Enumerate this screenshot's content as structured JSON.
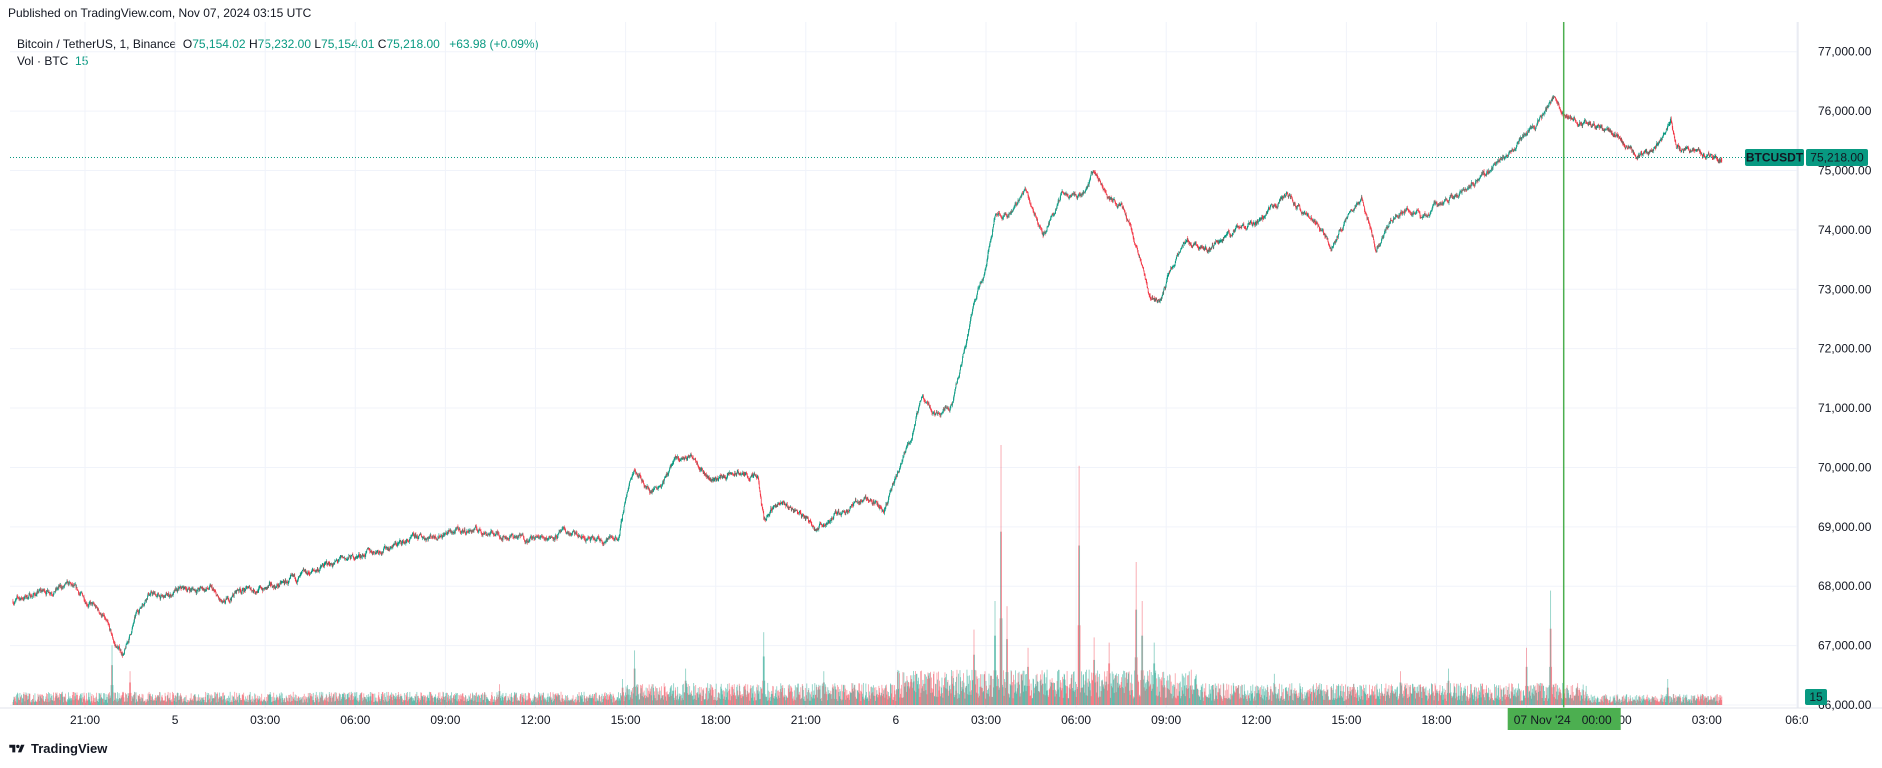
{
  "header": {
    "published": "Published on TradingView.com, Nov 07, 2024 03:15 UTC"
  },
  "legend": {
    "symbol": "Bitcoin / TetherUS, 1, Binance",
    "o_label": "O",
    "o_value": "75,154.02",
    "h_label": "H",
    "h_value": "75,232.00",
    "l_label": "L",
    "l_value": "75,154.01",
    "c_label": "C",
    "c_value": "75,218.00",
    "change": "+63.98 (+0.09%)",
    "vol_label": "Vol · BTC",
    "vol_value": "15"
  },
  "badges": {
    "symbol_badge": "BTCUSDT",
    "price_badge": "75,218.00",
    "volume_badge": "15",
    "crosshair_date": "07 Nov '24",
    "crosshair_time": "00:00"
  },
  "footer": {
    "brand": "TradingView"
  },
  "colors": {
    "up": "#089981",
    "down": "#f23645",
    "crosshair": "#4caf50",
    "grid": "#f0f3fa",
    "price_line": "#089981"
  },
  "chart_data": {
    "type": "candlestick",
    "symbol": "BTCUSDT",
    "timeframe": "1",
    "exchange": "Binance",
    "y_axis": {
      "ticks": [
        "77,000.00",
        "76,000.00",
        "75,000.00",
        "74,000.00",
        "73,000.00",
        "72,000.00",
        "71,000.00",
        "70,000.00",
        "69,000.00",
        "68,000.00",
        "67,000.00",
        "66,000.00"
      ],
      "ylim": [
        65950,
        77500
      ]
    },
    "x_axis": {
      "ticks": [
        {
          "label": "21:00",
          "h": 0
        },
        {
          "label": "5",
          "h": 3
        },
        {
          "label": "03:00",
          "h": 6
        },
        {
          "label": "06:00",
          "h": 9
        },
        {
          "label": "09:00",
          "h": 12
        },
        {
          "label": "12:00",
          "h": 15
        },
        {
          "label": "15:00",
          "h": 18
        },
        {
          "label": "18:00",
          "h": 21
        },
        {
          "label": "21:00",
          "h": 24
        },
        {
          "label": "6",
          "h": 27
        },
        {
          "label": "03:00",
          "h": 30
        },
        {
          "label": "06:00",
          "h": 33
        },
        {
          "label": "09:00",
          "h": 36
        },
        {
          "label": "12:00",
          "h": 39
        },
        {
          "label": "15:00",
          "h": 42
        },
        {
          "label": "18:00",
          "h": 45
        },
        {
          "label": "21:00",
          "h": 48
        },
        {
          "label": "00:00",
          "h": 51
        },
        {
          "label": "03:00",
          "h": 54
        },
        {
          "label": "06:0",
          "h": 57
        }
      ],
      "start_h": -2.4,
      "end_h": 59.2
    },
    "last_price": 75218,
    "crosshair_h": 51,
    "price_path": [
      [
        -2.4,
        67750
      ],
      [
        -1.5,
        67900
      ],
      [
        -0.5,
        68000
      ],
      [
        0.2,
        67700
      ],
      [
        0.6,
        67500
      ],
      [
        1.0,
        67000
      ],
      [
        1.3,
        66850
      ],
      [
        1.7,
        67500
      ],
      [
        2.1,
        67900
      ],
      [
        2.6,
        67800
      ],
      [
        3.3,
        67950
      ],
      [
        4.2,
        67950
      ],
      [
        4.6,
        67650
      ],
      [
        5.1,
        67950
      ],
      [
        6.0,
        67950
      ],
      [
        7.0,
        68100
      ],
      [
        8.0,
        68350
      ],
      [
        9.0,
        68500
      ],
      [
        10.0,
        68650
      ],
      [
        11.0,
        68800
      ],
      [
        12.0,
        68900
      ],
      [
        13.0,
        68950
      ],
      [
        14.0,
        68850
      ],
      [
        15.0,
        68800
      ],
      [
        16.0,
        68900
      ],
      [
        17.0,
        68750
      ],
      [
        17.8,
        68850
      ],
      [
        18.0,
        69500
      ],
      [
        18.3,
        70000
      ],
      [
        18.8,
        69600
      ],
      [
        19.3,
        69800
      ],
      [
        19.6,
        70100
      ],
      [
        20.3,
        70200
      ],
      [
        20.8,
        69800
      ],
      [
        21.8,
        69900
      ],
      [
        22.4,
        69800
      ],
      [
        22.6,
        69100
      ],
      [
        23.0,
        69400
      ],
      [
        23.6,
        69300
      ],
      [
        24.4,
        69000
      ],
      [
        25.0,
        69200
      ],
      [
        26.0,
        69500
      ],
      [
        26.6,
        69300
      ],
      [
        27.0,
        69800
      ],
      [
        27.5,
        70500
      ],
      [
        27.9,
        71200
      ],
      [
        28.3,
        70900
      ],
      [
        28.9,
        71100
      ],
      [
        29.3,
        72000
      ],
      [
        29.6,
        72800
      ],
      [
        29.9,
        73200
      ],
      [
        30.3,
        74300
      ],
      [
        30.7,
        74200
      ],
      [
        31.3,
        74700
      ],
      [
        31.9,
        73900
      ],
      [
        32.5,
        74600
      ],
      [
        33.2,
        74600
      ],
      [
        33.6,
        75000
      ],
      [
        34.1,
        74500
      ],
      [
        34.6,
        74400
      ],
      [
        35.1,
        73600
      ],
      [
        35.4,
        72900
      ],
      [
        35.8,
        72800
      ],
      [
        36.2,
        73400
      ],
      [
        36.7,
        73800
      ],
      [
        37.5,
        73700
      ],
      [
        38.3,
        74000
      ],
      [
        39.1,
        74100
      ],
      [
        40.0,
        74600
      ],
      [
        41.0,
        74100
      ],
      [
        41.5,
        73700
      ],
      [
        42.0,
        74200
      ],
      [
        42.5,
        74500
      ],
      [
        43.0,
        73700
      ],
      [
        43.5,
        74200
      ],
      [
        44.0,
        74400
      ],
      [
        44.5,
        74200
      ],
      [
        45.0,
        74400
      ],
      [
        45.8,
        74600
      ],
      [
        46.5,
        74900
      ],
      [
        47.0,
        75100
      ],
      [
        47.4,
        75300
      ],
      [
        48.0,
        75600
      ],
      [
        48.5,
        75900
      ],
      [
        48.9,
        76200
      ],
      [
        49.4,
        75900
      ],
      [
        50.0,
        75800
      ],
      [
        50.5,
        75700
      ],
      [
        51.0,
        75600
      ],
      [
        51.5,
        75300
      ],
      [
        52.0,
        75200
      ],
      [
        52.6,
        75600
      ],
      [
        52.8,
        75900
      ],
      [
        53.0,
        75400
      ],
      [
        53.6,
        75350
      ],
      [
        54.1,
        75250
      ],
      [
        54.4,
        75150
      ],
      [
        54.5,
        75218
      ]
    ],
    "volume_spikes": [
      {
        "h": 0.9,
        "v": 0.23
      },
      {
        "h": 1.5,
        "v": 0.13
      },
      {
        "h": 9.5,
        "v": 0.05
      },
      {
        "h": 13.8,
        "v": 0.08
      },
      {
        "h": 17.9,
        "v": 0.1
      },
      {
        "h": 18.3,
        "v": 0.21
      },
      {
        "h": 20.0,
        "v": 0.14
      },
      {
        "h": 22.6,
        "v": 0.28
      },
      {
        "h": 24.6,
        "v": 0.13
      },
      {
        "h": 27.7,
        "v": 0.12
      },
      {
        "h": 29.6,
        "v": 0.29
      },
      {
        "h": 30.3,
        "v": 0.4
      },
      {
        "h": 30.5,
        "v": 1.0
      },
      {
        "h": 30.7,
        "v": 0.38
      },
      {
        "h": 31.4,
        "v": 0.22
      },
      {
        "h": 33.1,
        "v": 0.92
      },
      {
        "h": 33.6,
        "v": 0.26
      },
      {
        "h": 34.1,
        "v": 0.24
      },
      {
        "h": 35.0,
        "v": 0.55
      },
      {
        "h": 35.2,
        "v": 0.4
      },
      {
        "h": 35.6,
        "v": 0.24
      },
      {
        "h": 39.6,
        "v": 0.12
      },
      {
        "h": 43.8,
        "v": 0.13
      },
      {
        "h": 45.4,
        "v": 0.14
      },
      {
        "h": 48.0,
        "v": 0.22
      },
      {
        "h": 48.8,
        "v": 0.44
      },
      {
        "h": 52.7,
        "v": 0.1
      }
    ]
  }
}
